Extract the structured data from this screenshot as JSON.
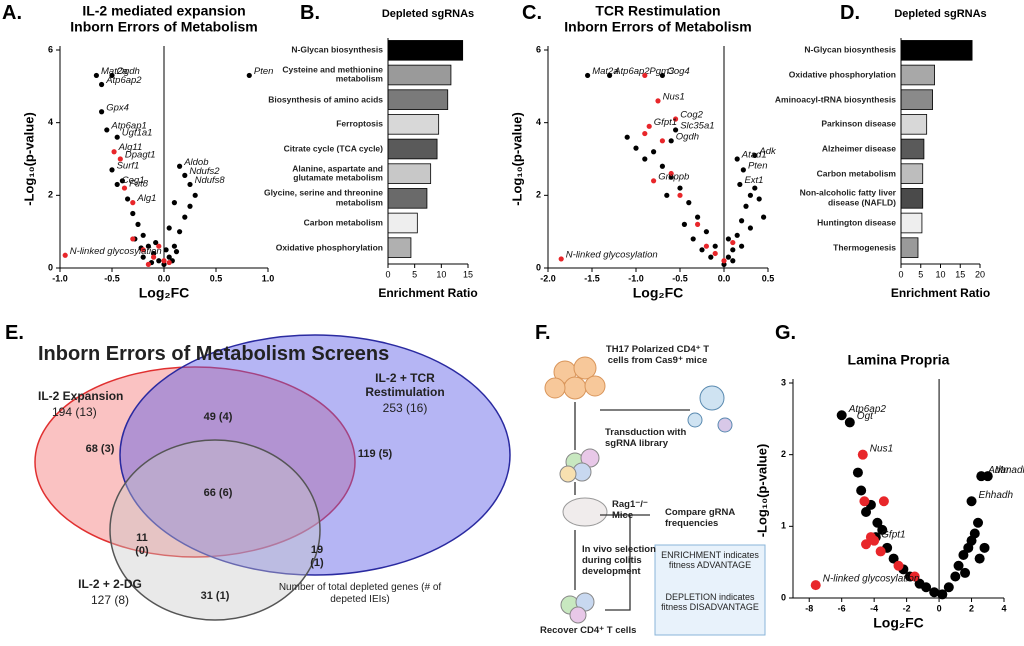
{
  "chart_data": [
    {
      "type": "scatter",
      "panel": "A.",
      "title": "IL-2 mediated expansion",
      "subtitle": "Inborn Errors of Metabolism",
      "xlabel": "Log₂FC",
      "ylabel": "-Log₁₀(p-value)",
      "xlim": [
        -1,
        1
      ],
      "ylim": [
        0,
        6
      ],
      "xticks": [
        {
          "value": -1,
          "label": "-1.0"
        },
        -0.5,
        {
          "value": 0,
          "label": "0.0"
        },
        0.5,
        {
          "value": 1,
          "label": "1.0"
        }
      ],
      "yticks": [
        0,
        2,
        4,
        6
      ],
      "zero_line": true,
      "series": [
        {
          "color": "#000000",
          "x": [
            -0.3,
            -0.25,
            -0.2,
            -0.15,
            -0.1,
            -0.05,
            0,
            0.05,
            0.1,
            0.15,
            0.2,
            0.1,
            0.3,
            0.05,
            -0.35,
            -0.28,
            -0.2,
            -0.12,
            0.02,
            0.08,
            -0.4,
            0.25,
            -0.08,
            0.12,
            -0.22
          ],
          "y": [
            1.5,
            1.2,
            0.9,
            0.6,
            0.4,
            0.2,
            0.1,
            0.3,
            0.6,
            1.0,
            1.4,
            1.8,
            2.0,
            1.1,
            1.9,
            0.8,
            0.3,
            0.15,
            0.5,
            0.2,
            2.4,
            1.7,
            0.7,
            0.45,
            0.55
          ]
        },
        {
          "color": "#e8262a",
          "x": [
            -0.2,
            -0.1,
            0,
            -0.15,
            0.05,
            -0.3,
            -0.05
          ],
          "y": [
            0.5,
            0.3,
            0.2,
            0.1,
            0.15,
            0.8,
            0.6
          ]
        },
        {
          "color": "#000000",
          "x": [
            -0.65,
            -0.5,
            -0.6,
            -0.6,
            -0.55,
            -0.45,
            -0.5,
            -0.45,
            0.15,
            0.2,
            0.25,
            0.82
          ],
          "y": [
            5.3,
            5.3,
            5.05,
            4.3,
            3.8,
            3.6,
            2.7,
            2.3,
            2.8,
            2.55,
            2.3,
            5.3
          ],
          "labels": [
            "Mat2a",
            "Ogdh",
            "Atp6ap2",
            "Gpx4",
            "Atp6ap1",
            "Ugt1a1",
            "Surf1",
            "Cog1",
            "Aldob",
            "Ndufs2",
            "Ndufs8",
            "Pten"
          ]
        },
        {
          "color": "#e8262a",
          "x": [
            -0.48,
            -0.42,
            -0.38,
            -0.3,
            -0.95
          ],
          "y": [
            3.2,
            3.0,
            2.2,
            1.8,
            0.35
          ],
          "labels": [
            "Alg11",
            "Dpagt1",
            "Fut8",
            "Alg1",
            "N-linked glycosylation"
          ]
        }
      ]
    },
    {
      "type": "hbar",
      "panel": "B.",
      "title": "Depleted sgRNAs",
      "xlabel": "Enrichment Ratio",
      "categories": [
        "N-Glycan biosynthesis",
        "Cysteine and methionine metabolism",
        "Biosynthesis of amino acids",
        "Ferroptosis",
        "Citrate cycle (TCA cycle)",
        "Alanine, aspartate and glutamate metabolism",
        "Glycine, serine and threonine metabolism",
        "Carbon metabolism",
        "Oxidative phosphorylation"
      ],
      "values": [
        14,
        11.8,
        11.2,
        9.5,
        9.2,
        8,
        7.3,
        5.5,
        4.3
      ],
      "colors": [
        "#000000",
        "#9a9a9a",
        "#7a7a7a",
        "#d8d8d8",
        "#5a5a5a",
        "#c8c8c8",
        "#6a6a6a",
        "#eeeeee",
        "#b0b0b0"
      ],
      "xlim": [
        0,
        15
      ],
      "xticks": [
        0,
        5,
        10,
        15
      ]
    },
    {
      "type": "scatter",
      "panel": "C.",
      "title": "TCR Restimulation",
      "subtitle": "Inborn Errors of Metabolism",
      "xlabel": "Log₂FC",
      "ylabel": "-Log₁₀(p-value)",
      "xlim": [
        -2,
        0.5
      ],
      "ylim": [
        0,
        6
      ],
      "xticks": [
        {
          "value": -2,
          "label": "-2.0"
        },
        -1.5,
        {
          "value": -1,
          "label": "-1.0"
        },
        -0.5,
        {
          "value": 0,
          "label": "0.0"
        },
        0.5
      ],
      "yticks": [
        0,
        2,
        4,
        6
      ],
      "zero_line": true,
      "series": [
        {
          "color": "#000000",
          "x": [
            -1.1,
            -1.0,
            -0.9,
            -0.7,
            -0.6,
            -0.5,
            -0.4,
            -0.3,
            -0.2,
            -0.1,
            0.05,
            0.1,
            0.15,
            0.2,
            0.25,
            0.3,
            0.35,
            0.4,
            -0.45,
            -0.35,
            -0.25,
            -0.15,
            0.0,
            0.1,
            0.2,
            0.3,
            -0.65,
            -0.8,
            0.45,
            0.05
          ],
          "y": [
            3.6,
            3.3,
            3.0,
            2.8,
            2.5,
            2.2,
            1.8,
            1.4,
            1.0,
            0.6,
            0.3,
            0.5,
            0.9,
            1.3,
            1.7,
            2.0,
            2.2,
            1.9,
            1.2,
            0.8,
            0.5,
            0.3,
            0.1,
            0.2,
            0.6,
            1.1,
            2.0,
            3.2,
            1.4,
            0.8
          ]
        },
        {
          "color": "#e8262a",
          "x": [
            -0.9,
            -0.7,
            -0.5,
            -0.3,
            -0.2,
            -0.1,
            0.0,
            0.1,
            -0.6
          ],
          "y": [
            3.7,
            3.5,
            2.0,
            1.2,
            0.6,
            0.4,
            0.2,
            0.7,
            2.6
          ]
        },
        {
          "color": "#000000",
          "x": [
            -1.55,
            -1.3,
            -0.7,
            -0.55,
            -0.6,
            0.35,
            0.15,
            0.22,
            0.18
          ],
          "y": [
            5.3,
            5.3,
            5.3,
            3.8,
            3.5,
            3.1,
            3.0,
            2.7,
            2.3
          ],
          "labels": [
            "Mat2a",
            "Atp6ap2",
            "Cog4",
            "Slc35a1",
            "Ogdh",
            "Adk",
            "Atad1",
            "Pten",
            "Ext1"
          ]
        },
        {
          "color": "#e8262a",
          "x": [
            -0.9,
            -0.75,
            -0.55,
            -0.85,
            -0.8,
            -1.85
          ],
          "y": [
            5.3,
            4.6,
            4.1,
            3.9,
            2.4,
            0.25
          ],
          "labels": [
            "Pgm3",
            "Nus1",
            "Cog2",
            "Gfpt1",
            "Gmppb",
            "N-linked glycosylation"
          ]
        }
      ]
    },
    {
      "type": "hbar",
      "panel": "D.",
      "title": "Depleted sgRNAs",
      "xlabel": "Enrichment Ratio",
      "categories": [
        "N-Glycan biosynthesis",
        "Oxidative phosphorylation",
        "Aminoacyl-tRNA biosynthesis",
        "Parkinson disease",
        "Alzheimer disease",
        "Carbon metabolism",
        "Non-alcoholic fatty liver disease (NAFLD)",
        "Huntington disease",
        "Thermogenesis"
      ],
      "values": [
        18,
        8.5,
        8,
        6.5,
        5.8,
        5.5,
        5.5,
        5.3,
        4.3
      ],
      "colors": [
        "#000000",
        "#a8a8a8",
        "#8a8a8a",
        "#d8d8d8",
        "#5a5a5a",
        "#bdbdbd",
        "#4a4a4a",
        "#eeeeee",
        "#9a9a9a"
      ],
      "xlim": [
        0,
        20
      ],
      "xticks": [
        0,
        5,
        10,
        15,
        20
      ]
    },
    {
      "type": "scatter",
      "panel": "G.",
      "title": "Lamina Propria",
      "xlabel": "Log₂FC",
      "ylabel": "-Log₁₀(p-value)",
      "xlim": [
        -9,
        4
      ],
      "ylim": [
        0,
        3
      ],
      "xticks": [
        -8,
        -6,
        -4,
        -2,
        0,
        2,
        4
      ],
      "yticks": [
        0,
        1,
        2,
        3
      ],
      "zero_line": true,
      "series": [
        {
          "color": "#000000",
          "x": [
            -5,
            -4.8,
            -4.2,
            -3.8,
            -3.5,
            -3.2,
            -2.8,
            -2.2,
            -1.8,
            -1.2,
            -0.8,
            -0.3,
            0.2,
            0.6,
            1,
            1.2,
            1.5,
            1.8,
            2.2,
            2.5,
            2.8,
            1.6,
            2,
            2.4,
            -4.5,
            -3.9
          ],
          "y": [
            1.75,
            1.5,
            1.3,
            1.05,
            0.95,
            0.7,
            0.55,
            0.4,
            0.3,
            0.2,
            0.15,
            0.08,
            0.05,
            0.15,
            0.3,
            0.45,
            0.6,
            0.7,
            0.9,
            0.55,
            0.7,
            0.35,
            0.8,
            1.05,
            1.2,
            0.85
          ]
        },
        {
          "color": "#e8262a",
          "x": [
            -4.6,
            -3.4,
            -4.2,
            -3.6,
            -2.5,
            -1.5,
            -4.5
          ],
          "y": [
            1.35,
            1.35,
            0.85,
            0.65,
            0.45,
            0.3,
            0.75
          ]
        },
        {
          "color": "#000000",
          "x": [
            -6,
            -5.5,
            2.6,
            3,
            2
          ],
          "y": [
            2.55,
            2.45,
            1.7,
            1.7,
            1.35
          ],
          "labels": [
            "Atp6ap2",
            "Ogt",
            "Adar",
            "Mmadhc",
            "Ehhadh"
          ]
        },
        {
          "color": "#e8262a",
          "x": [
            -4.7,
            -4,
            -7.6
          ],
          "y": [
            2.0,
            0.8,
            0.18
          ],
          "labels": [
            "Nus1",
            "Gfpt1",
            "N-linked glycosylation"
          ]
        }
      ]
    }
  ],
  "panel_e": {
    "panel": "E.",
    "title": "Inborn  Errors of Metabolism Screens",
    "sets": [
      {
        "name": "IL-2 Expansion",
        "count": "194 (13)"
      },
      {
        "name": "IL-2 + TCR Restimulation",
        "count": "253 (16)"
      },
      {
        "name": "IL-2 + 2-DG",
        "count": "127 (8)"
      }
    ],
    "regions": [
      "68 (3)",
      "49 (4)",
      "119 (5)",
      "66 (6)",
      "11 (0)",
      "19 (1)",
      "31 (1)"
    ],
    "note": "Number of total depleted genes (# of depeted IEIs)"
  },
  "panel_f": {
    "panel": "F.",
    "start": "TH17 Polarized CD4⁺ T cells from Cas9⁺ mice",
    "transduction": "Transduction with sgRNA library",
    "mice": "Rag1⁻/⁻ Mice",
    "selection": "In vivo selection during colitis development",
    "compare": "Compare gRNA frequencies",
    "enrichment": "ENRICHMENT indicates fitness ADVANTAGE",
    "depletion": "DEPLETION indicates fitness DISADVANTAGE",
    "recover": "Recover CD4⁺ T cells"
  }
}
